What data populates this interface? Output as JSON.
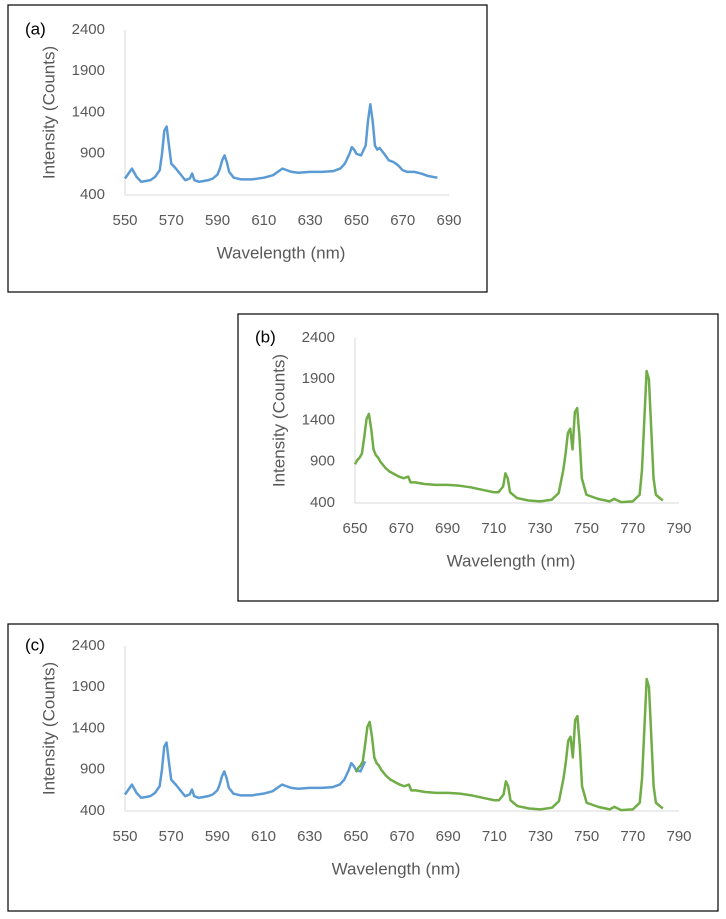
{
  "chart_data": [
    {
      "type": "line",
      "label": "(a)",
      "xlabel": "Wavelength (nm)",
      "ylabel": "Intensity (Counts)",
      "xlim": [
        550,
        690
      ],
      "xticks": [
        550,
        570,
        590,
        610,
        630,
        650,
        670,
        690
      ],
      "ylim": [
        400,
        2400
      ],
      "yticks": [
        400,
        900,
        1400,
        1900,
        2400
      ],
      "grid": false,
      "series": [
        {
          "color": "#5b9bd5",
          "x": [
            550,
            552,
            553,
            555,
            557,
            559,
            561,
            563,
            565,
            566,
            567,
            568,
            569,
            570,
            572,
            574,
            576,
            578,
            579,
            580,
            582,
            584,
            586,
            588,
            590,
            591,
            592,
            593,
            594,
            595,
            597,
            600,
            605,
            610,
            614,
            616,
            618,
            620,
            622,
            625,
            630,
            635,
            640,
            643,
            645,
            647,
            648,
            649,
            650,
            652,
            654,
            655,
            656,
            657,
            658,
            659,
            660,
            662,
            664,
            666,
            668,
            670,
            672,
            675,
            678,
            681,
            685
          ],
          "values": [
            600,
            680,
            720,
            620,
            560,
            570,
            580,
            620,
            700,
            900,
            1180,
            1230,
            1000,
            780,
            720,
            650,
            580,
            600,
            660,
            580,
            560,
            570,
            580,
            600,
            650,
            720,
            820,
            880,
            800,
            680,
            610,
            590,
            590,
            610,
            640,
            680,
            720,
            700,
            680,
            670,
            680,
            680,
            690,
            720,
            780,
            900,
            980,
            950,
            900,
            880,
            1000,
            1300,
            1500,
            1300,
            1000,
            950,
            970,
            900,
            820,
            800,
            760,
            700,
            680,
            680,
            660,
            630,
            610
          ]
        }
      ]
    },
    {
      "type": "line",
      "label": "(b)",
      "xlabel": "Wavelength (nm)",
      "ylabel": "Intensity (Counts)",
      "xlim": [
        650,
        790
      ],
      "xticks": [
        650,
        670,
        690,
        710,
        730,
        750,
        770,
        790
      ],
      "ylim": [
        400,
        2400
      ],
      "yticks": [
        400,
        900,
        1400,
        1900,
        2400
      ],
      "grid": false,
      "series": [
        {
          "color": "#70ad47",
          "x": [
            650,
            651,
            652,
            653,
            654,
            655,
            656,
            657,
            658,
            659,
            660,
            661,
            663,
            665,
            667,
            669,
            671,
            673,
            674,
            676,
            680,
            685,
            690,
            695,
            700,
            705,
            710,
            712,
            714,
            715,
            716,
            717,
            720,
            725,
            730,
            735,
            738,
            740,
            741,
            742,
            743,
            744,
            745,
            746,
            747,
            748,
            750,
            755,
            760,
            762,
            765,
            770,
            773,
            774,
            775,
            776,
            777,
            778,
            779,
            780,
            783
          ],
          "values": [
            870,
            920,
            950,
            1000,
            1200,
            1420,
            1480,
            1300,
            1050,
            980,
            950,
            900,
            830,
            780,
            750,
            720,
            700,
            720,
            650,
            650,
            630,
            620,
            620,
            610,
            590,
            560,
            530,
            530,
            600,
            760,
            700,
            530,
            460,
            430,
            420,
            440,
            520,
            800,
            1000,
            1250,
            1300,
            1050,
            1500,
            1550,
            1200,
            700,
            500,
            450,
            420,
            450,
            410,
            420,
            500,
            800,
            1400,
            2000,
            1900,
            1300,
            700,
            500,
            430
          ]
        }
      ]
    },
    {
      "type": "line",
      "label": "(c)",
      "xlabel": "Wavelength (nm)",
      "ylabel": "Intensity (Counts)",
      "xlim": [
        550,
        790
      ],
      "xticks": [
        550,
        570,
        590,
        610,
        630,
        650,
        670,
        690,
        710,
        730,
        750,
        770,
        790
      ],
      "ylim": [
        400,
        2400
      ],
      "yticks": [
        400,
        900,
        1400,
        1900,
        2400
      ],
      "grid": false,
      "series": [
        {
          "color": "#5b9bd5",
          "x": [
            550,
            552,
            553,
            555,
            557,
            559,
            561,
            563,
            565,
            566,
            567,
            568,
            569,
            570,
            572,
            574,
            576,
            578,
            579,
            580,
            582,
            584,
            586,
            588,
            590,
            591,
            592,
            593,
            594,
            595,
            597,
            600,
            605,
            610,
            614,
            616,
            618,
            620,
            622,
            625,
            630,
            635,
            640,
            643,
            645,
            647,
            648,
            649,
            650,
            652,
            654
          ],
          "values": [
            600,
            680,
            720,
            620,
            560,
            570,
            580,
            620,
            700,
            900,
            1180,
            1230,
            1000,
            780,
            720,
            650,
            580,
            600,
            660,
            580,
            560,
            570,
            580,
            600,
            650,
            720,
            820,
            880,
            800,
            680,
            610,
            590,
            590,
            610,
            640,
            680,
            720,
            700,
            680,
            670,
            680,
            680,
            690,
            720,
            780,
            900,
            980,
            950,
            900,
            880,
            1000
          ]
        },
        {
          "color": "#70ad47",
          "x": [
            650,
            651,
            652,
            653,
            654,
            655,
            656,
            657,
            658,
            659,
            660,
            661,
            663,
            665,
            667,
            669,
            671,
            673,
            674,
            676,
            680,
            685,
            690,
            695,
            700,
            705,
            710,
            712,
            714,
            715,
            716,
            717,
            720,
            725,
            730,
            735,
            738,
            740,
            741,
            742,
            743,
            744,
            745,
            746,
            747,
            748,
            750,
            755,
            760,
            762,
            765,
            770,
            773,
            774,
            775,
            776,
            777,
            778,
            779,
            780,
            783
          ],
          "values": [
            870,
            920,
            950,
            1000,
            1200,
            1420,
            1480,
            1300,
            1050,
            980,
            950,
            900,
            830,
            780,
            750,
            720,
            700,
            720,
            650,
            650,
            630,
            620,
            620,
            610,
            590,
            560,
            530,
            530,
            600,
            760,
            700,
            530,
            460,
            430,
            420,
            440,
            520,
            800,
            1000,
            1250,
            1300,
            1050,
            1500,
            1550,
            1200,
            700,
            500,
            450,
            420,
            450,
            410,
            420,
            500,
            800,
            1400,
            2000,
            1900,
            1300,
            700,
            500,
            430
          ]
        }
      ]
    }
  ]
}
